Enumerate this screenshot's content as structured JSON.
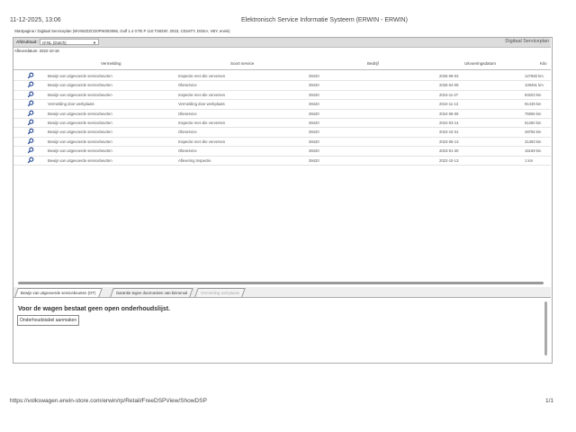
{
  "header": {
    "timestamp": "11-12-2025, 13:06",
    "title": "Elektronisch Service Informatie Systeem (ERWIN - ERWIN)"
  },
  "breadcrumb": "Startpagina / Digitaal Serviceplan (WVWZZZCD0PW303056, Golf 1.4 GTE P 110 TSIDSF, 2023, CD16TY, DGEA, VBY, erwin)",
  "toolbar": {
    "label": "Afdruktaal:",
    "language": "nl-NL (Dutch)",
    "section_title": "Digitaal Serviceplan"
  },
  "delivery_date": "Afleverdatum: 2022-10-18",
  "columns": [
    "Vermelding",
    "Soort service",
    "Bedrijf",
    "Uitvoeringsdatum",
    "Kilo"
  ],
  "rows": [
    {
      "vermelding": "Bewijs van uitgevoerde servicebeurten",
      "soort": "Inspectie met olie verversen",
      "bedrijf": "39420",
      "datum": "2025-09-03",
      "km": "127660 km"
    },
    {
      "vermelding": "Bewijs van uitgevoerde servicebeurten",
      "soort": "Olieservice",
      "bedrijf": "39420",
      "datum": "2025-04-08",
      "km": "109461 km"
    },
    {
      "vermelding": "Bewijs van uitgevoerde servicebeurten",
      "soort": "Inspectie met olie verversen",
      "bedrijf": "39420",
      "datum": "2024-11-27",
      "km": "93203 km"
    },
    {
      "vermelding": "Vermelding door werkplaats",
      "soort": "Vermelding door werkplaats",
      "bedrijf": "39420",
      "datum": "2024-11-13",
      "km": "91439 km"
    },
    {
      "vermelding": "Bewijs van uitgevoerde servicebeurten",
      "soort": "Olieservice",
      "bedrijf": "39420",
      "datum": "2024-06-06",
      "km": "75066 km"
    },
    {
      "vermelding": "Bewijs van uitgevoerde servicebeurten",
      "soort": "Inspectie met olie verversen",
      "bedrijf": "39420",
      "datum": "2024-03-14",
      "km": "51260 km"
    },
    {
      "vermelding": "Bewijs van uitgevoerde servicebeurten",
      "soort": "Olieservice",
      "bedrijf": "39420",
      "datum": "2023-10-31",
      "km": "48756 km"
    },
    {
      "vermelding": "Bewijs van uitgevoerde servicebeurten",
      "soort": "Inspectie met olie verversen",
      "bedrijf": "39420",
      "datum": "2023-06-13",
      "km": "31393 km"
    },
    {
      "vermelding": "Bewijs van uitgevoerde servicebeurten",
      "soort": "Olieservice",
      "bedrijf": "39420",
      "datum": "2023-01-30",
      "km": "15169 km"
    },
    {
      "vermelding": "Bewijs van uitgevoerde servicebeurten",
      "soort": "Aflevering Inspectie",
      "bedrijf": "39420",
      "datum": "2022-10-13",
      "km": "1 km"
    }
  ],
  "tabs": [
    "Bewijs van uitgevoerde servicebeurten (OT)",
    "Garantie tegen doorroesten van binnenuit",
    "Vermelding werkplaats"
  ],
  "panel": {
    "message": "Voor de wagen bestaat geen open onderhoudslijst.",
    "button": "Onderhoudstabel aanmaken"
  },
  "footer": {
    "url": "https://volkswagen.erwin-store.com/erwin/rp/Retail/FreeDSPView/ShowDSP",
    "page": "1/1"
  },
  "colors": {
    "icon": "#1a3f8f"
  }
}
